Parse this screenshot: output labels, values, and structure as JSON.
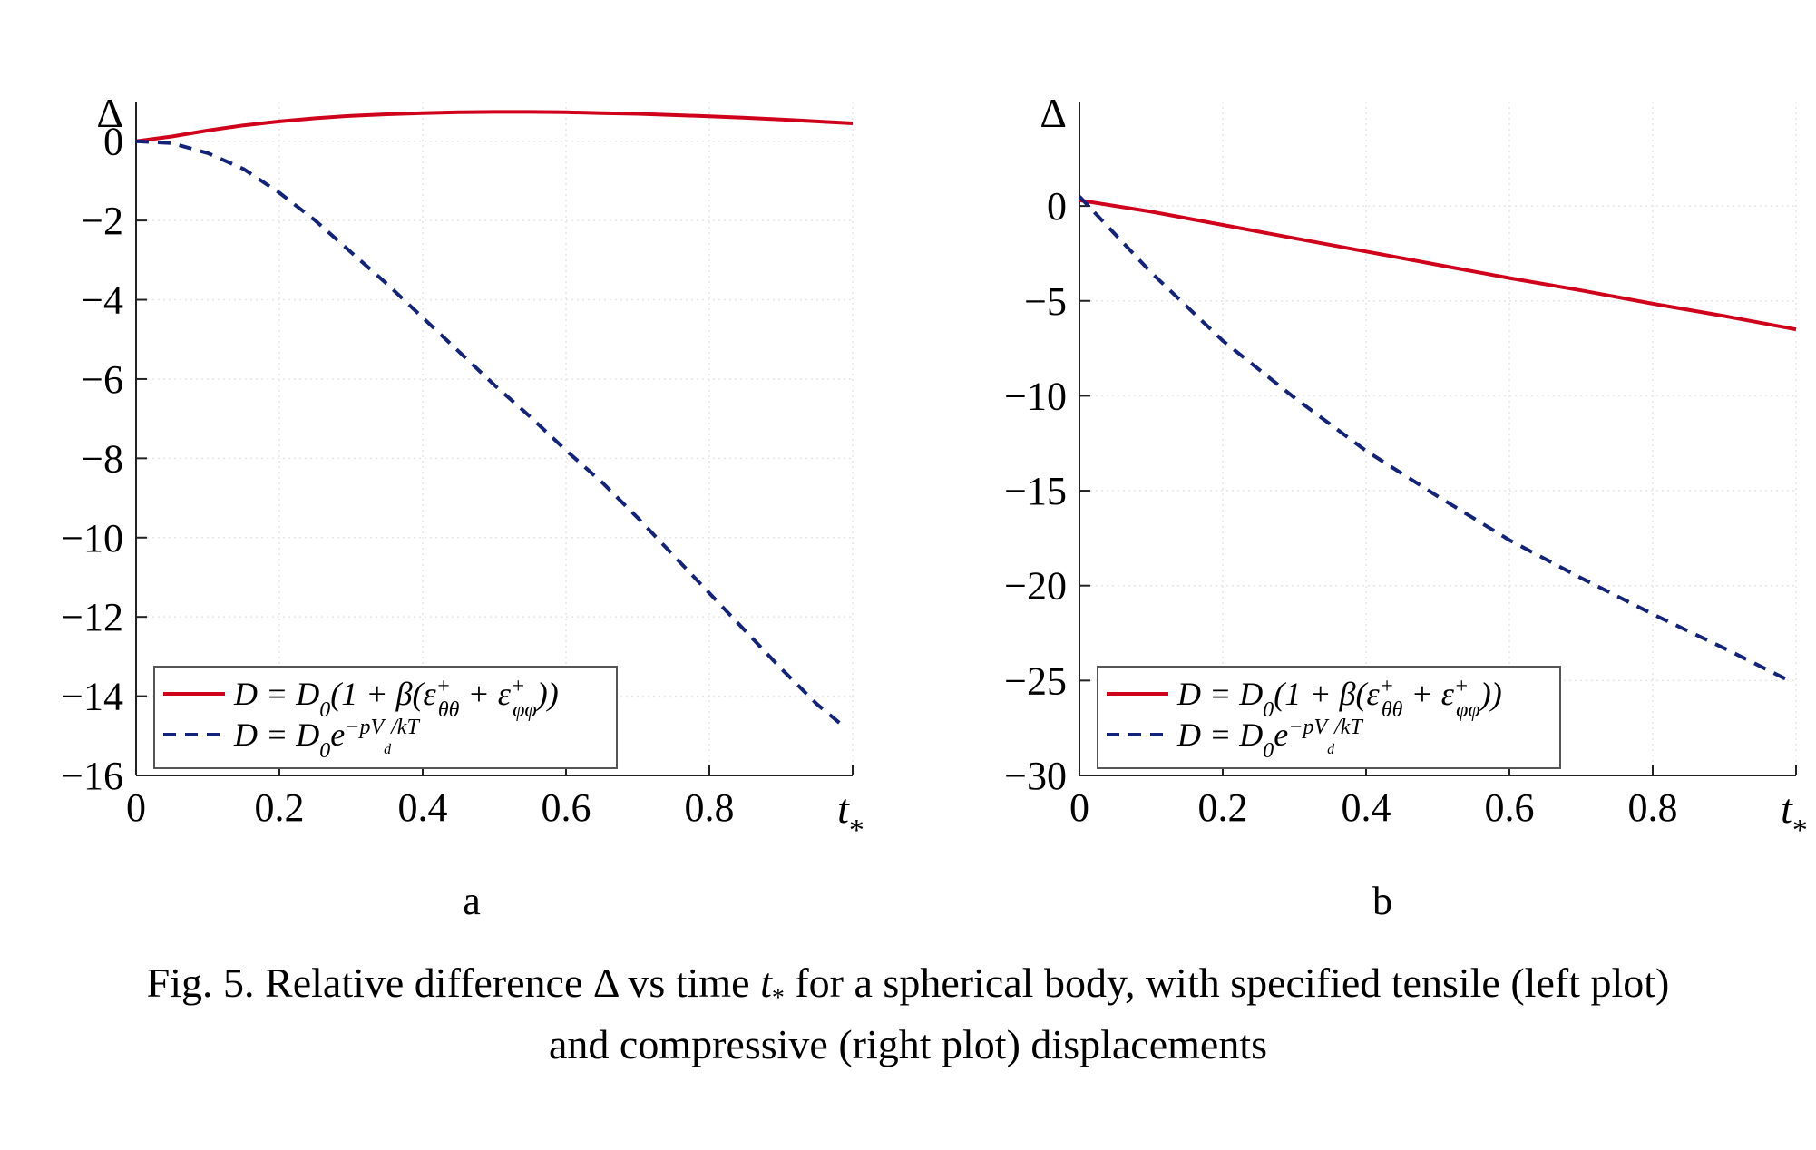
{
  "chart_data": [
    {
      "panel_label": "a",
      "type": "line",
      "xlabel": "t",
      "xlabel_sub": "*",
      "ylabel": "Δ",
      "xlim": [
        0,
        1
      ],
      "ylim": [
        -16,
        1
      ],
      "xticks": [
        "0",
        "0.2",
        "0.4",
        "0.6",
        "0.8"
      ],
      "xtick_values": [
        0,
        0.2,
        0.4,
        0.6,
        0.8
      ],
      "yticks": [
        "0",
        "−2",
        "−4",
        "−6",
        "−8",
        "−10",
        "−12",
        "−14",
        "−16"
      ],
      "ytick_values": [
        0,
        -2,
        -4,
        -6,
        -8,
        -10,
        -12,
        -14,
        -16
      ],
      "grid": true,
      "legend_position": "bottom-left",
      "series": [
        {
          "legend": "D = D0(1 + β(ε+θθ + ε+φφ))",
          "color": "#d0021b",
          "style": "solid",
          "x": [
            0,
            0.05,
            0.1,
            0.15,
            0.2,
            0.25,
            0.3,
            0.35,
            0.4,
            0.45,
            0.5,
            0.55,
            0.6,
            0.65,
            0.7,
            0.75,
            0.8,
            0.85,
            0.9,
            0.95,
            1.0
          ],
          "y": [
            0,
            0.12,
            0.27,
            0.4,
            0.5,
            0.58,
            0.64,
            0.68,
            0.71,
            0.73,
            0.74,
            0.74,
            0.73,
            0.71,
            0.69,
            0.66,
            0.63,
            0.59,
            0.55,
            0.5,
            0.45
          ]
        },
        {
          "legend": "D = D0 e^(−pVd/kT)",
          "color": "#14237a",
          "style": "dashed",
          "x": [
            0,
            0.05,
            0.1,
            0.15,
            0.2,
            0.25,
            0.3,
            0.35,
            0.4,
            0.45,
            0.5,
            0.55,
            0.6,
            0.65,
            0.7,
            0.75,
            0.8,
            0.85,
            0.9,
            0.95,
            0.99
          ],
          "y": [
            0,
            -0.05,
            -0.3,
            -0.7,
            -1.3,
            -2.0,
            -2.8,
            -3.6,
            -4.45,
            -5.3,
            -6.15,
            -6.95,
            -7.8,
            -8.6,
            -9.5,
            -10.45,
            -11.4,
            -12.35,
            -13.3,
            -14.2,
            -14.8
          ]
        }
      ]
    },
    {
      "panel_label": "b",
      "type": "line",
      "xlabel": "t",
      "xlabel_sub": "*",
      "ylabel": "Δ",
      "xlim": [
        0,
        1
      ],
      "ylim": [
        -30,
        5.5
      ],
      "xticks": [
        "0",
        "0.2",
        "0.4",
        "0.6",
        "0.8"
      ],
      "xtick_values": [
        0,
        0.2,
        0.4,
        0.6,
        0.8
      ],
      "yticks": [
        "0",
        "−5",
        "−10",
        "−15",
        "−20",
        "−25",
        "−30"
      ],
      "ytick_values": [
        0,
        -5,
        -10,
        -15,
        -20,
        -25,
        -30
      ],
      "grid": true,
      "legend_position": "bottom-left",
      "series": [
        {
          "legend": "D = D0(1 + β(ε+θθ + ε+φφ))",
          "color": "#d0021b",
          "style": "solid",
          "x": [
            0,
            0.1,
            0.2,
            0.3,
            0.4,
            0.5,
            0.6,
            0.7,
            0.8,
            0.9,
            1.0
          ],
          "y": [
            0.3,
            -0.3,
            -1.0,
            -1.7,
            -2.4,
            -3.1,
            -3.8,
            -4.45,
            -5.15,
            -5.8,
            -6.5
          ]
        },
        {
          "legend": "D = D0 e^(−pVd/kT)",
          "color": "#14237a",
          "style": "dashed",
          "x": [
            0,
            0.1,
            0.2,
            0.3,
            0.4,
            0.5,
            0.6,
            0.7,
            0.8,
            0.9,
            0.99
          ],
          "y": [
            0.5,
            -3.5,
            -7.1,
            -10.1,
            -12.9,
            -15.3,
            -17.6,
            -19.6,
            -21.5,
            -23.3,
            -25.0
          ]
        }
      ]
    }
  ],
  "caption": {
    "line1_pre": "Fig. 5. Relative difference Δ vs time ",
    "line1_var": "t",
    "line1_sub": "*",
    "line1_post": " for a spherical body, with specified tensile (left plot)",
    "line2": "and compressive (right plot) displacements"
  }
}
